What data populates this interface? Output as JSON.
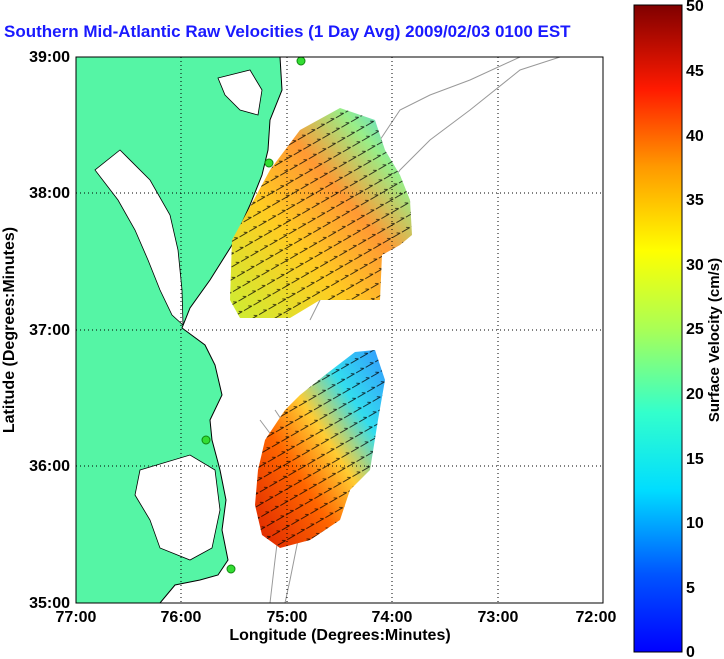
{
  "map": {
    "title": "Southern Mid-Atlantic Raw Velocities (1 Day Avg) 2009/02/03 0100 EST",
    "xlabel": "Longitude (Degrees:Minutes)",
    "ylabel": "Latitude (Degrees:Minutes)",
    "x_ticks": [
      "77:00",
      "76:00",
      "75:00",
      "74:00",
      "73:00",
      "72:00"
    ],
    "y_ticks": [
      "39:00",
      "38:00",
      "37:00",
      "36:00",
      "35:00"
    ],
    "lon_range": [
      -77,
      -72
    ],
    "lat_range": [
      35,
      39
    ],
    "colorbar": {
      "label": "Surface Velocity (cm/s)",
      "range": [
        0,
        50
      ],
      "ticks": [
        "50",
        "45",
        "40",
        "35",
        "30",
        "25",
        "20",
        "15",
        "10",
        "5",
        "0"
      ],
      "colormap": "jet"
    },
    "colors": {
      "land": "#55f5a5",
      "coast": "#000000",
      "title": "#1a1aff",
      "bathymetry": "#999999",
      "site_marker": "#33dd33"
    }
  }
}
